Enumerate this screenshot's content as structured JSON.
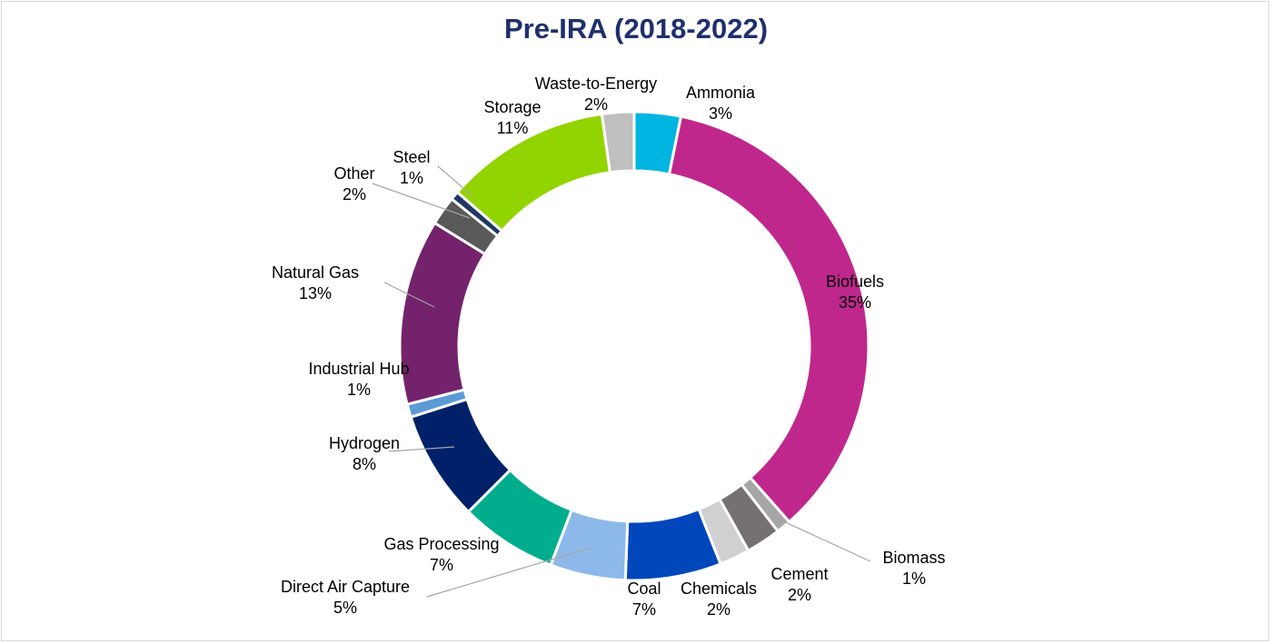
{
  "chart_data": {
    "type": "pie",
    "title": "Pre-IRA (2018-2022)",
    "donut": true,
    "slices": [
      {
        "name": "Ammonia",
        "label": "3%",
        "value": 3.2,
        "color": "#00b5e2"
      },
      {
        "name": "Biofuels",
        "label": "35%",
        "value": 35.3,
        "color": "#c0278c"
      },
      {
        "name": "Biomass",
        "label": "1%",
        "value": 1.0,
        "color": "#a6a6a6"
      },
      {
        "name": "Cement",
        "label": "2%",
        "value": 2.4,
        "color": "#767171"
      },
      {
        "name": "Chemicals",
        "label": "2%",
        "value": 2.1,
        "color": "#d0d0d0"
      },
      {
        "name": "Coal",
        "label": "7%",
        "value": 6.6,
        "color": "#0047bb"
      },
      {
        "name": "Direct Air Capture",
        "label": "5%",
        "value": 5.2,
        "color": "#8db9ea"
      },
      {
        "name": "Gas Processing",
        "label": "7%",
        "value": 6.7,
        "color": "#00ae8e"
      },
      {
        "name": "Hydrogen",
        "label": "8%",
        "value": 7.6,
        "color": "#002169"
      },
      {
        "name": "Industrial Hub",
        "label": "1%",
        "value": 0.9,
        "color": "#5b9bd5"
      },
      {
        "name": "Natural Gas",
        "label": "13%",
        "value": 12.8,
        "color": "#73226b"
      },
      {
        "name": "Other",
        "label": "2%",
        "value": 2.0,
        "color": "#595959"
      },
      {
        "name": "Steel",
        "label": "1%",
        "value": 0.6,
        "color": "#1f3864"
      },
      {
        "name": "Storage",
        "label": "11%",
        "value": 11.4,
        "color": "#92d400"
      },
      {
        "name": "Waste-to-Energy",
        "label": "2%",
        "value": 2.2,
        "color": "#bfbfbf"
      }
    ]
  }
}
